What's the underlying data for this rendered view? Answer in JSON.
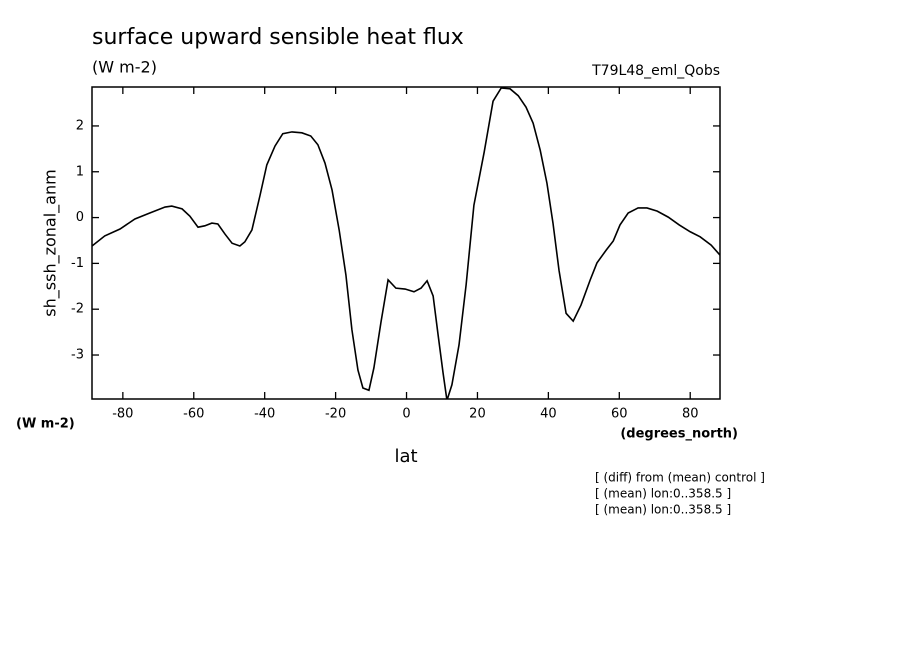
{
  "chart_data": {
    "type": "line",
    "title": "surface upward sensible heat flux",
    "subtitle": "(W m-2)",
    "run_label": "T79L48_eml_Qobs",
    "y_axis_label": "sh_ssh_zonal_anm",
    "y_units": "(W m-2)",
    "x_units": "(degrees_north)",
    "x_axis_label": "lat",
    "annotations": [
      "[ (diff) from (mean) control ]",
      "[ (mean) lon:0..358.5 ]",
      "[ (mean) lon:0..358.5 ]"
    ],
    "x": [
      -88.7,
      -85.1,
      -80.8,
      -76.6,
      -72.4,
      -68.1,
      -66.2,
      -63.3,
      -61.1,
      -58.8,
      -56.9,
      -54.9,
      -53.2,
      -51.2,
      -49.2,
      -47.0,
      -45.6,
      -43.6,
      -41.3,
      -39.4,
      -37.1,
      -34.9,
      -32.3,
      -29.5,
      -27.0,
      -25.0,
      -23.0,
      -21.0,
      -19.0,
      -17.1,
      -15.4,
      -13.7,
      -12.3,
      -10.6,
      -9.2,
      -7.2,
      -5.2,
      -3.0,
      -0.4,
      2.1,
      4.1,
      5.8,
      7.5,
      8.9,
      10.3,
      11.4,
      12.8,
      14.8,
      16.8,
      19.0,
      21.9,
      24.4,
      26.7,
      29.2,
      31.5,
      33.7,
      35.7,
      37.7,
      39.6,
      41.3,
      43.0,
      45.0,
      47.0,
      49.2,
      51.8,
      53.7,
      56.3,
      58.3,
      60.2,
      62.5,
      65.3,
      67.8,
      70.7,
      73.8,
      76.9,
      80.0,
      82.8,
      85.9,
      88.4
    ],
    "series": [
      {
        "name": "sh_ssh_zonal_anm",
        "color": "#000000",
        "values": [
          -0.62,
          -0.4,
          -0.25,
          -0.03,
          0.1,
          0.23,
          0.25,
          0.19,
          0.03,
          -0.21,
          -0.18,
          -0.12,
          -0.14,
          -0.36,
          -0.56,
          -0.62,
          -0.53,
          -0.27,
          0.49,
          1.15,
          1.56,
          1.83,
          1.87,
          1.85,
          1.78,
          1.59,
          1.19,
          0.6,
          -0.27,
          -1.25,
          -2.45,
          -3.33,
          -3.72,
          -3.77,
          -3.28,
          -2.28,
          -1.36,
          -1.54,
          -1.56,
          -1.62,
          -1.54,
          -1.38,
          -1.71,
          -2.56,
          -3.39,
          -3.99,
          -3.65,
          -2.78,
          -1.47,
          0.27,
          1.43,
          2.54,
          2.83,
          2.81,
          2.66,
          2.41,
          2.06,
          1.47,
          0.75,
          -0.12,
          -1.15,
          -2.09,
          -2.26,
          -1.91,
          -1.36,
          -0.99,
          -0.71,
          -0.51,
          -0.16,
          0.1,
          0.21,
          0.21,
          0.14,
          0.01,
          -0.16,
          -0.31,
          -0.42,
          -0.6,
          -0.82
        ]
      }
    ],
    "xlim": [
      -88.7,
      88.4
    ],
    "ylim": [
      -3.96,
      2.85
    ],
    "xticks": [
      -80,
      -60,
      -40,
      -20,
      0,
      20,
      40,
      60,
      80
    ],
    "yticks": [
      -3,
      -2,
      -1,
      0,
      1,
      2
    ],
    "grid": false
  }
}
